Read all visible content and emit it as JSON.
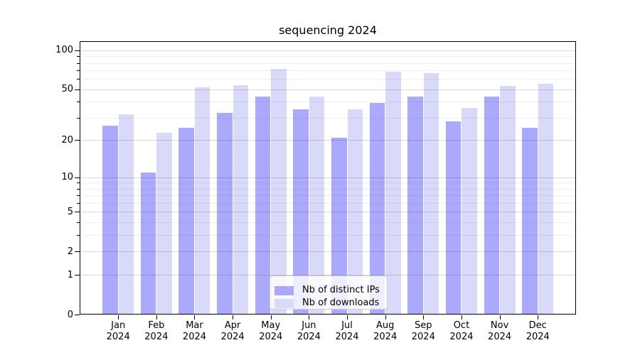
{
  "chart_data": {
    "type": "bar",
    "title": "sequencing 2024",
    "year": "2024",
    "categories": [
      "Jan",
      "Feb",
      "Mar",
      "Apr",
      "May",
      "Jun",
      "Jul",
      "Aug",
      "Sep",
      "Oct",
      "Nov",
      "Dec"
    ],
    "series": [
      {
        "name": "Nb of distinct IPs",
        "key": "ips",
        "color": "#aaa9fc",
        "values": [
          26,
          11,
          25,
          33,
          44,
          35,
          21,
          39,
          44,
          28,
          44,
          25
        ]
      },
      {
        "name": "Nb of downloads",
        "key": "downloads",
        "color": "#d9d9f9",
        "values": [
          32,
          23,
          52,
          54,
          72,
          44,
          35,
          68,
          67,
          36,
          53,
          55
        ]
      }
    ],
    "yscale": "log1p",
    "y_major_ticks": [
      0,
      1,
      2,
      5,
      10,
      20,
      50,
      100
    ],
    "y_minor_ticks": [
      3,
      4,
      6,
      7,
      8,
      9,
      30,
      40,
      60,
      70,
      80,
      90
    ],
    "ylim": [
      0,
      117
    ],
    "grid": true,
    "legend_position": "inside-bottom-center",
    "axis_color": "#000000",
    "grid_major_color": "#d9d9d9",
    "grid_minor_color": "#f0f0f0"
  }
}
